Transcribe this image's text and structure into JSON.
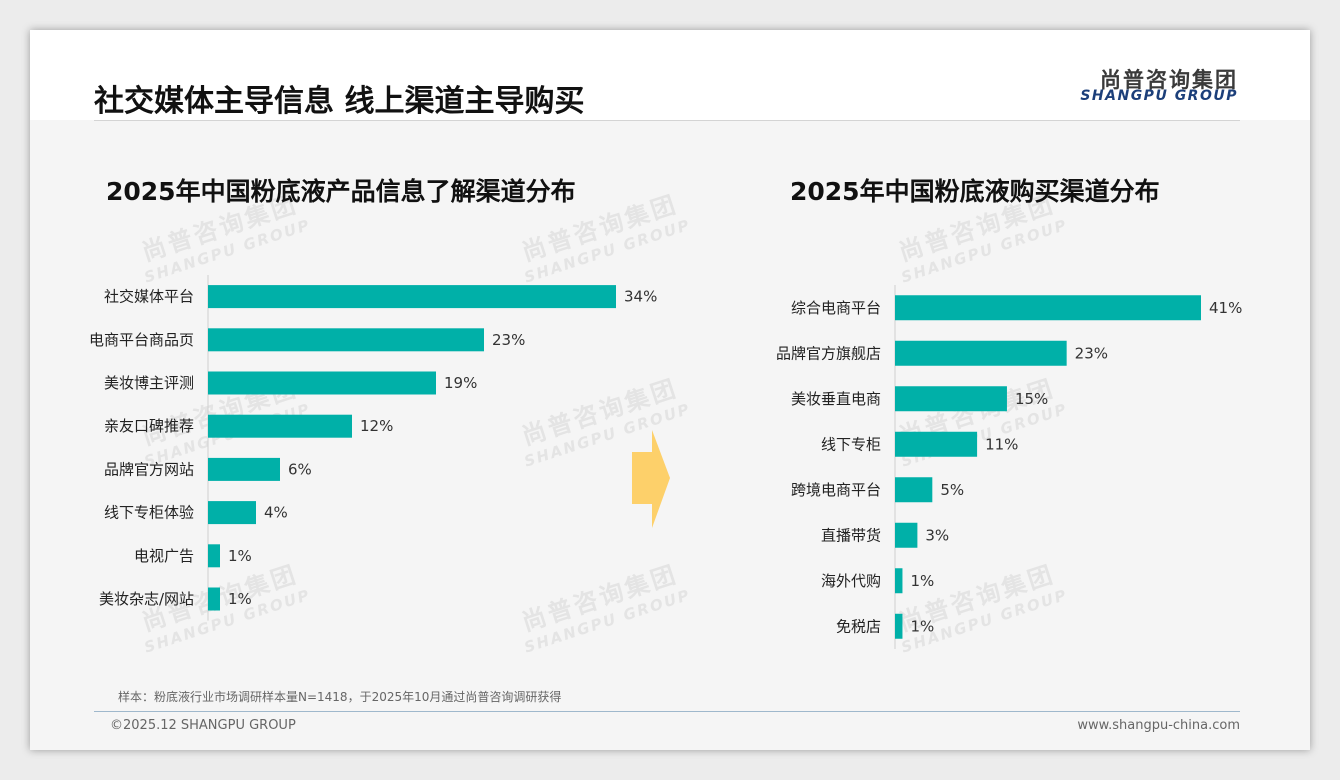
{
  "header": {
    "title": "社交媒体主导信息 线上渠道主导购买",
    "logo_cn": "尚普咨询集团",
    "logo_en": "SHANGPU GROUP"
  },
  "watermark": {
    "cn": "尚普咨询集团",
    "en": "SHANGPU GROUP"
  },
  "colors": {
    "bar": "#00b0a8",
    "arrow": "#fdd06a"
  },
  "chart_data": [
    {
      "type": "bar",
      "orientation": "horizontal",
      "title": "2025年中国粉底液产品信息了解渠道分布",
      "categories": [
        "社交媒体平台",
        "电商平台商品页",
        "美妆博主评测",
        "亲友口碑推荐",
        "品牌官方网站",
        "线下专柜体验",
        "电视广告",
        "美妆杂志/网站"
      ],
      "values": [
        34,
        23,
        19,
        12,
        6,
        4,
        1,
        1
      ],
      "labels": [
        "34%",
        "23%",
        "19%",
        "12%",
        "6%",
        "4%",
        "1%",
        "1%"
      ],
      "unit": "%",
      "grid": false,
      "legend": "none"
    },
    {
      "type": "bar",
      "orientation": "horizontal",
      "title": "2025年中国粉底液购买渠道分布",
      "categories": [
        "综合电商平台",
        "品牌官方旗舰店",
        "美妆垂直电商",
        "线下专柜",
        "跨境电商平台",
        "直播带货",
        "海外代购",
        "免税店"
      ],
      "values": [
        41,
        23,
        15,
        11,
        5,
        3,
        1,
        1
      ],
      "labels": [
        "41%",
        "23%",
        "15%",
        "11%",
        "5%",
        "3%",
        "1%",
        "1%"
      ],
      "unit": "%",
      "grid": false,
      "legend": "none"
    }
  ],
  "footer": {
    "note": "样本：粉底液行业市场调研样本量N=1418，于2025年10月通过尚普咨询调研获得",
    "copyright": "©2025.12 SHANGPU GROUP",
    "website": "www.shangpu-china.com"
  }
}
